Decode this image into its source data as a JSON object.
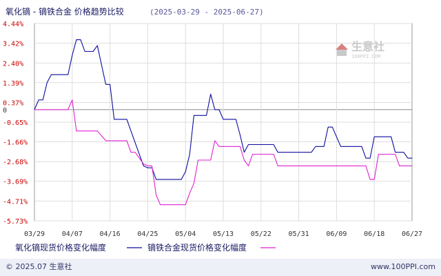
{
  "header": {
    "title": "氧化镝 - 镝铁合金 价格趋势比较",
    "date_range": "(2025-03-29 - 2025-06-27)"
  },
  "footer": {
    "copyright": "© 2025.07 生意社",
    "url": "www.100PPI.com"
  },
  "watermark": {
    "name": "生意社",
    "url": "100PPI.COM"
  },
  "colors": {
    "series1": "#0b0b9e",
    "series2": "#e020d0",
    "ytick": "#cc0000",
    "grid": "#dddddd",
    "zero_line": "#888888"
  },
  "chart_data": {
    "type": "line",
    "title": "氧化镝 - 镝铁合金 价格趋势比较",
    "subtitle": "(2025-03-29 - 2025-06-27)",
    "xlabel": "",
    "ylabel": "",
    "y_ticks": [
      "4.44%",
      "3.42%",
      "2.40%",
      "1.39%",
      "0.37%",
      "0",
      "-0.65%",
      "-1.66%",
      "-2.68%",
      "-3.69%",
      "-4.71%",
      "-5.73%"
    ],
    "y_tick_values": [
      4.44,
      3.42,
      2.4,
      1.39,
      0.37,
      0,
      -0.65,
      -1.66,
      -2.68,
      -3.69,
      -4.71,
      -5.73
    ],
    "ylim": [
      -5.73,
      4.44
    ],
    "x_ticks": [
      "03/29",
      "04/07",
      "04/16",
      "04/25",
      "05/04",
      "05/13",
      "05/22",
      "05/31",
      "06/09",
      "06/18",
      "06/27"
    ],
    "x_days": 90,
    "grid": true,
    "legend_position": "bottom",
    "series": [
      {
        "name": "氧化镝现货价格变化幅度",
        "color": "#0b0b9e",
        "points": [
          [
            0,
            0
          ],
          [
            1,
            0.5
          ],
          [
            2,
            0.5
          ],
          [
            3,
            1.39
          ],
          [
            4,
            1.8
          ],
          [
            5,
            1.8
          ],
          [
            7,
            1.8
          ],
          [
            8,
            1.8
          ],
          [
            9,
            2.8
          ],
          [
            10,
            3.6
          ],
          [
            11,
            3.6
          ],
          [
            12,
            3.0
          ],
          [
            14,
            3.0
          ],
          [
            15,
            3.3
          ],
          [
            17,
            1.3
          ],
          [
            18,
            1.3
          ],
          [
            19,
            -0.5
          ],
          [
            20,
            -0.5
          ],
          [
            22,
            -0.5
          ],
          [
            24,
            -1.7
          ],
          [
            26,
            -2.9
          ],
          [
            27,
            -3.0
          ],
          [
            28,
            -3.0
          ],
          [
            29,
            -3.6
          ],
          [
            35,
            -3.6
          ],
          [
            36,
            -3.2
          ],
          [
            37,
            -2.3
          ],
          [
            38,
            -0.3
          ],
          [
            39,
            -0.3
          ],
          [
            40,
            -0.3
          ],
          [
            41,
            -0.3
          ],
          [
            42,
            0.8
          ],
          [
            43,
            0.0
          ],
          [
            44,
            0.0
          ],
          [
            45,
            -0.5
          ],
          [
            46,
            -0.5
          ],
          [
            48,
            -0.5
          ],
          [
            49,
            -1.3
          ],
          [
            50,
            -2.2
          ],
          [
            51,
            -1.8
          ],
          [
            52,
            -1.8
          ],
          [
            57,
            -1.8
          ],
          [
            58,
            -2.2
          ],
          [
            65,
            -2.2
          ],
          [
            66,
            -2.2
          ],
          [
            67,
            -1.9
          ],
          [
            69,
            -1.9
          ],
          [
            70,
            -0.9
          ],
          [
            71,
            -0.9
          ],
          [
            73,
            -1.9
          ],
          [
            74,
            -1.9
          ],
          [
            78,
            -1.9
          ],
          [
            79,
            -2.5
          ],
          [
            80,
            -2.5
          ],
          [
            81,
            -1.4
          ],
          [
            85,
            -1.4
          ],
          [
            86,
            -2.2
          ],
          [
            88,
            -2.2
          ],
          [
            89,
            -2.5
          ],
          [
            90,
            -2.5
          ]
        ]
      },
      {
        "name": "镝铁合金现货价格变化幅度",
        "color": "#e020d0",
        "points": [
          [
            0,
            0
          ],
          [
            8,
            0
          ],
          [
            9,
            0.5
          ],
          [
            10,
            -1.1
          ],
          [
            14,
            -1.1
          ],
          [
            15,
            -1.1
          ],
          [
            17,
            -1.6
          ],
          [
            18,
            -1.6
          ],
          [
            22,
            -1.6
          ],
          [
            23,
            -2.2
          ],
          [
            24,
            -2.2
          ],
          [
            26,
            -2.8
          ],
          [
            27,
            -2.9
          ],
          [
            28,
            -2.9
          ],
          [
            29,
            -4.4
          ],
          [
            30,
            -4.9
          ],
          [
            36,
            -4.9
          ],
          [
            37,
            -4.3
          ],
          [
            38,
            -3.8
          ],
          [
            39,
            -2.6
          ],
          [
            40,
            -2.6
          ],
          [
            42,
            -2.6
          ],
          [
            43,
            -1.6
          ],
          [
            44,
            -1.9
          ],
          [
            49,
            -1.9
          ],
          [
            50,
            -2.6
          ],
          [
            51,
            -2.9
          ],
          [
            52,
            -2.3
          ],
          [
            57,
            -2.3
          ],
          [
            58,
            -2.9
          ],
          [
            65,
            -2.9
          ],
          [
            79,
            -2.9
          ],
          [
            80,
            -3.6
          ],
          [
            81,
            -3.6
          ],
          [
            82,
            -2.3
          ],
          [
            86,
            -2.3
          ],
          [
            87,
            -2.9
          ],
          [
            88,
            -2.9
          ],
          [
            90,
            -2.9
          ]
        ]
      }
    ]
  }
}
